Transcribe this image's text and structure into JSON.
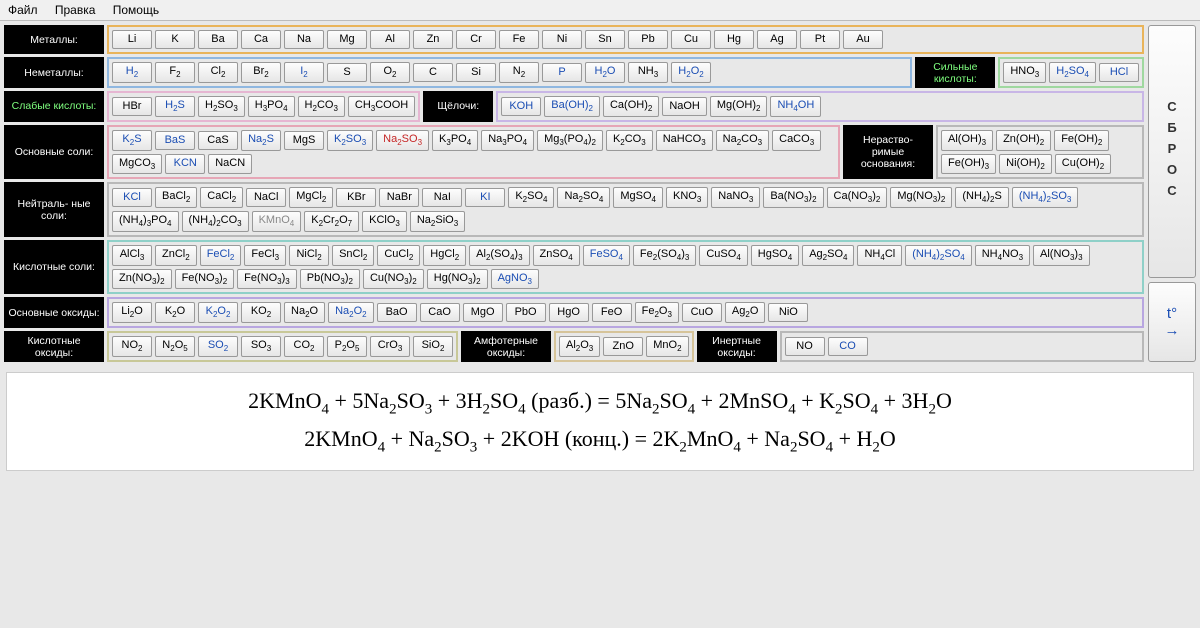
{
  "menu": {
    "file": "Файл",
    "edit": "Правка",
    "help": "Помощь"
  },
  "sidebar": {
    "reset": "СБРОС",
    "t": "t°",
    "arrow": "→"
  },
  "colors": {
    "orange": "#e9b45a",
    "blue": "#8fb7e0",
    "green": "#9fd89f",
    "pink": "#e6b6d2",
    "lilac": "#c8b6e6",
    "rose": "#e6a6b6",
    "gray": "#b8b8b8",
    "teal": "#8fd0c8",
    "lav": "#b8a6e0",
    "khaki": "#c8c898",
    "tan": "#d6c49a"
  },
  "labels": {
    "metals": "Металлы:",
    "nonmetals": "Неметаллы:",
    "strong_acids": "Сильные\nкислоты:",
    "weak_acids": "Слабые\nкислоты:",
    "alkali": "Щёлочи:",
    "basic_salts": "Основные\nсоли:",
    "insoluble_bases": "Нераство-\nримые\nоснования:",
    "neutral_salts": "Нейтраль-\nные соли:",
    "acid_salts": "Кислотные\nсоли:",
    "basic_oxides": "Основные\nоксиды:",
    "acid_oxides": "Кислотные\nоксиды:",
    "amph_oxides": "Амфотерные\nоксиды:",
    "inert_oxides": "Инертные\nоксиды:"
  },
  "groups": {
    "metals": [
      {
        "t": "Li"
      },
      {
        "t": "K"
      },
      {
        "t": "Ba"
      },
      {
        "t": "Ca"
      },
      {
        "t": "Na"
      },
      {
        "t": "Mg"
      },
      {
        "t": "Al"
      },
      {
        "t": "Zn"
      },
      {
        "t": "Cr"
      },
      {
        "t": "Fe"
      },
      {
        "t": "Ni"
      },
      {
        "t": "Sn"
      },
      {
        "t": "Pb"
      },
      {
        "t": "Cu"
      },
      {
        "t": "Hg"
      },
      {
        "t": "Ag"
      },
      {
        "t": "Pt"
      },
      {
        "t": "Au"
      }
    ],
    "nonmetals": [
      {
        "t": "H₂",
        "c": "blue"
      },
      {
        "t": "F₂"
      },
      {
        "t": "Cl₂"
      },
      {
        "t": "Br₂"
      },
      {
        "t": "I₂",
        "c": "blue"
      },
      {
        "t": "S"
      },
      {
        "t": "O₂"
      },
      {
        "t": "C"
      },
      {
        "t": "Si"
      },
      {
        "t": "N₂"
      },
      {
        "t": "P",
        "c": "blue"
      },
      {
        "t": "H₂O",
        "c": "blue"
      },
      {
        "t": "NH₃"
      },
      {
        "t": "H₂O₂",
        "c": "blue"
      }
    ],
    "strong_acids": [
      {
        "t": "HNO₃"
      },
      {
        "t": "H₂SO₄",
        "c": "blue"
      },
      {
        "t": "HCl",
        "c": "blue"
      }
    ],
    "weak_acids": [
      {
        "t": "HBr"
      },
      {
        "t": "H₂S",
        "c": "blue"
      },
      {
        "t": "H₂SO₃"
      },
      {
        "t": "H₃PO₄"
      },
      {
        "t": "H₂CO₃"
      },
      {
        "t": "CH₃COOH"
      }
    ],
    "alkali": [
      {
        "t": "KOH",
        "c": "blue"
      },
      {
        "t": "Ba(OH)₂",
        "c": "blue"
      },
      {
        "t": "Ca(OH)₂"
      },
      {
        "t": "NaOH"
      },
      {
        "t": "Mg(OH)₂"
      },
      {
        "t": "NH₄OH",
        "c": "blue"
      }
    ],
    "basic_salts": [
      {
        "t": "K₂S",
        "c": "blue"
      },
      {
        "t": "BaS",
        "c": "blue"
      },
      {
        "t": "CaS"
      },
      {
        "t": "Na₂S",
        "c": "blue"
      },
      {
        "t": "MgS"
      },
      {
        "t": "K₂SO₃",
        "c": "blue"
      },
      {
        "t": "Na₂SO₃",
        "c": "red"
      },
      {
        "t": "K₃PO₄"
      },
      {
        "t": "Na₃PO₄"
      },
      {
        "t": "Mg₃(PO₄)₂"
      },
      {
        "t": "K₂CO₃"
      },
      {
        "t": "NaHCO₃"
      },
      {
        "t": "Na₂CO₃"
      },
      {
        "t": "CaCO₃"
      },
      {
        "t": "MgCO₃"
      },
      {
        "t": "KCN",
        "c": "blue"
      },
      {
        "t": "NaCN"
      }
    ],
    "insoluble_bases": [
      {
        "t": "Al(OH)₃"
      },
      {
        "t": "Zn(OH)₂"
      },
      {
        "t": "Fe(OH)₂"
      },
      {
        "t": "Fe(OH)₃"
      },
      {
        "t": "Ni(OH)₂"
      },
      {
        "t": "Cu(OH)₂"
      }
    ],
    "neutral_salts": [
      {
        "t": "KCl",
        "c": "blue"
      },
      {
        "t": "BaCl₂"
      },
      {
        "t": "CaCl₂"
      },
      {
        "t": "NaCl"
      },
      {
        "t": "MgCl₂"
      },
      {
        "t": "KBr"
      },
      {
        "t": "NaBr"
      },
      {
        "t": "NaI"
      },
      {
        "t": "KI",
        "c": "blue"
      },
      {
        "t": "K₂SO₄"
      },
      {
        "t": "Na₂SO₄"
      },
      {
        "t": "MgSO₄"
      },
      {
        "t": "KNO₃"
      },
      {
        "t": "NaNO₃"
      },
      {
        "t": "Ba(NO₃)₂"
      },
      {
        "t": "Ca(NO₃)₂"
      },
      {
        "t": "Mg(NO₃)₂"
      },
      {
        "t": "(NH₄)₂S"
      },
      {
        "t": "(NH₄)₂SO₃",
        "c": "blue"
      },
      {
        "t": "(NH₄)₃PO₄"
      },
      {
        "t": "(NH₄)₂CO₃"
      },
      {
        "t": "KMnO₄",
        "c": "dim"
      },
      {
        "t": "K₂Cr₂O₇"
      },
      {
        "t": "KClO₃"
      },
      {
        "t": "Na₂SiO₃"
      }
    ],
    "acid_salts": [
      {
        "t": "AlCl₃"
      },
      {
        "t": "ZnCl₂"
      },
      {
        "t": "FeCl₂",
        "c": "blue"
      },
      {
        "t": "FeCl₃"
      },
      {
        "t": "NiCl₂"
      },
      {
        "t": "SnCl₂"
      },
      {
        "t": "CuCl₂"
      },
      {
        "t": "HgCl₂"
      },
      {
        "t": "Al₂(SO₄)₃"
      },
      {
        "t": "ZnSO₄"
      },
      {
        "t": "FeSO₄",
        "c": "blue"
      },
      {
        "t": "Fe₂(SO₄)₃"
      },
      {
        "t": "CuSO₄"
      },
      {
        "t": "HgSO₄"
      },
      {
        "t": "Ag₂SO₄"
      },
      {
        "t": "NH₄Cl"
      },
      {
        "t": "(NH₄)₂SO₄",
        "c": "blue"
      },
      {
        "t": "NH₄NO₃"
      },
      {
        "t": "Al(NO₃)₃"
      },
      {
        "t": "Zn(NO₃)₂"
      },
      {
        "t": "Fe(NO₃)₂"
      },
      {
        "t": "Fe(NO₃)₃"
      },
      {
        "t": "Pb(NO₃)₂"
      },
      {
        "t": "Cu(NO₃)₂"
      },
      {
        "t": "Hg(NO₃)₂"
      },
      {
        "t": "AgNO₃",
        "c": "blue"
      }
    ],
    "basic_oxides": [
      {
        "t": "Li₂O"
      },
      {
        "t": "K₂O"
      },
      {
        "t": "K₂O₂",
        "c": "blue"
      },
      {
        "t": "KO₂"
      },
      {
        "t": "Na₂O"
      },
      {
        "t": "Na₂O₂",
        "c": "blue"
      },
      {
        "t": "BaO"
      },
      {
        "t": "CaO"
      },
      {
        "t": "MgO"
      },
      {
        "t": "PbO"
      },
      {
        "t": "HgO"
      },
      {
        "t": "FeO"
      },
      {
        "t": "Fe₂O₃"
      },
      {
        "t": "CuO"
      },
      {
        "t": "Ag₂O"
      },
      {
        "t": "NiO"
      }
    ],
    "acid_oxides": [
      {
        "t": "NO₂"
      },
      {
        "t": "N₂O₅"
      },
      {
        "t": "SO₂",
        "c": "blue"
      },
      {
        "t": "SO₃"
      },
      {
        "t": "CO₂"
      },
      {
        "t": "P₂O₅"
      },
      {
        "t": "CrO₃"
      },
      {
        "t": "SiO₂"
      }
    ],
    "amph_oxides": [
      {
        "t": "Al₂O₃"
      },
      {
        "t": "ZnO"
      },
      {
        "t": "MnO₂"
      }
    ],
    "inert_oxides": [
      {
        "t": "NO"
      },
      {
        "t": "CO",
        "c": "blue"
      }
    ]
  },
  "equations": [
    "2KMnO₄ + 5Na₂SO₃ + 3H₂SO₄ (разб.) = 5Na₂SO₄ + 2MnSO₄ + K₂SO₄ + 3H₂O",
    "2KMnO₄ + Na₂SO₃ + 2KOH (конц.) = 2K₂MnO₄ + Na₂SO₄ + H₂O"
  ]
}
